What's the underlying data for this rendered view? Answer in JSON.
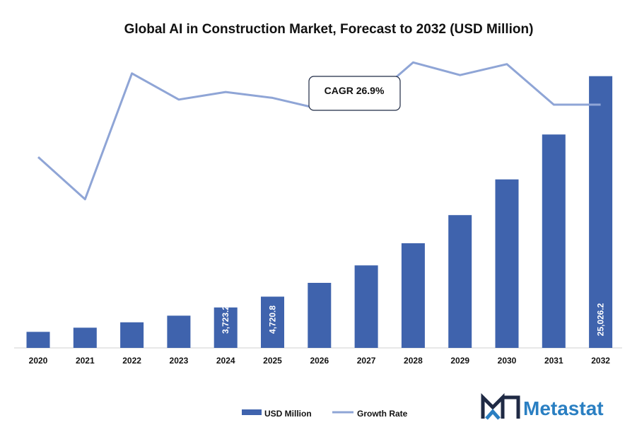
{
  "chart_data": {
    "type": "bar",
    "title": "Global AI in Construction Market, Forecast to 2032 (USD Million)",
    "categories": [
      "2020",
      "2021",
      "2022",
      "2023",
      "2024",
      "2025",
      "2026",
      "2027",
      "2028",
      "2029",
      "2030",
      "2031",
      "2032"
    ],
    "series": [
      {
        "name": "USD Million",
        "type": "bar",
        "color": "#3f63ad",
        "values": [
          1480,
          1860,
          2360,
          2970,
          3723.2,
          4720.8,
          5990,
          7600,
          9640,
          12230,
          15520,
          19650,
          25026.2
        ],
        "labels": [
          "",
          "",
          "",
          "",
          "3,723.2",
          "4,720.8",
          "",
          "",
          "",
          "",
          "",
          "",
          "25,026.2"
        ]
      },
      {
        "name": "Growth Rate",
        "type": "line",
        "color": "#8fa5d6",
        "values": [
          22.6,
          17.6,
          32.5,
          29.4,
          30.3,
          29.6,
          28.3,
          29.0,
          33.8,
          32.3,
          33.6,
          28.8,
          28.8
        ]
      }
    ],
    "ylim_bar": [
      0,
      28000
    ],
    "ylim_line": [
      0,
      36
    ],
    "annotation": "CAGR 26.9%",
    "legend": [
      "USD Million",
      "Growth Rate"
    ],
    "legend_position": "bottom"
  },
  "brand": {
    "name": "Metastat",
    "logo_icon": "m-logo-icon",
    "colors": {
      "dark": "#1f2a44",
      "accent": "#2a7fc2"
    }
  }
}
